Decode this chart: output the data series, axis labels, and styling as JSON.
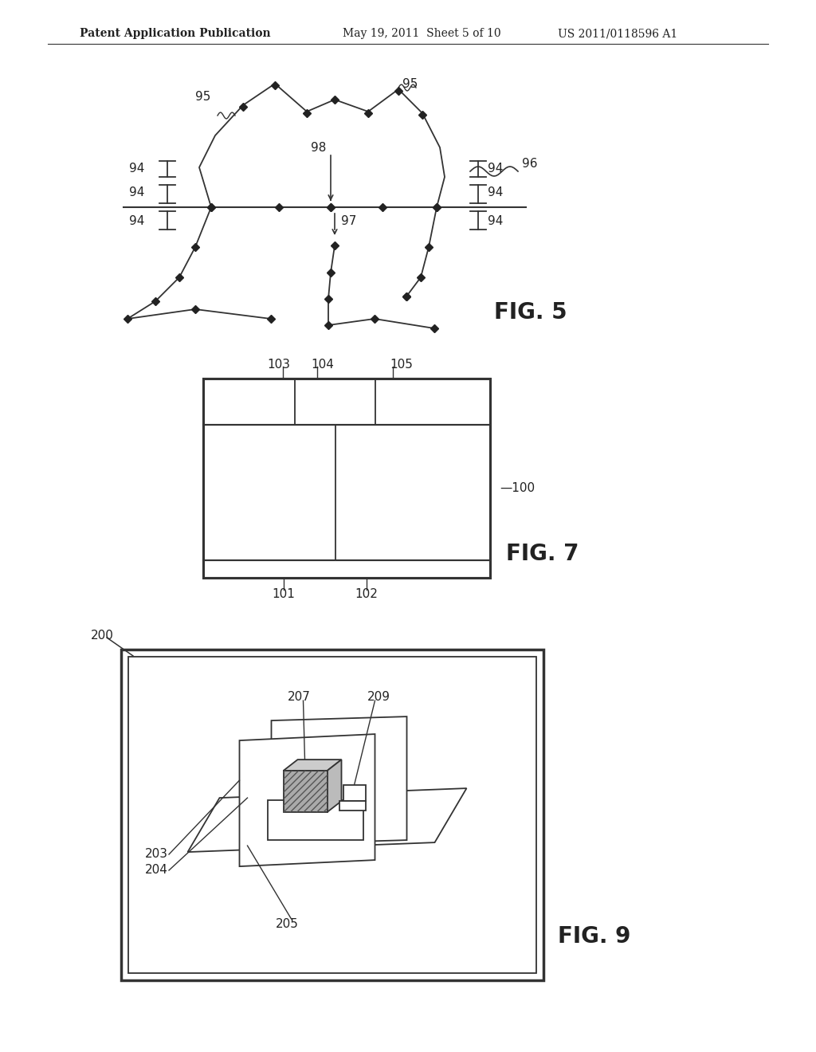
{
  "bg_color": "#ffffff",
  "header_text": "Patent Application Publication    May 19, 2011  Sheet 5 of 10    US 2011/0118596 A1",
  "fig5_label": "FIG. 5",
  "fig7_label": "FIG. 7",
  "fig9_label": "FIG. 9",
  "line_color": "#333333",
  "dot_color": "#222222",
  "text_color": "#222222"
}
